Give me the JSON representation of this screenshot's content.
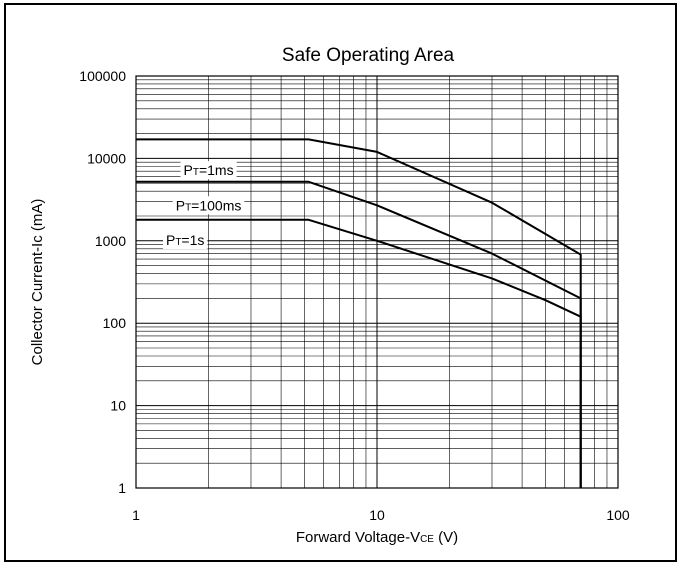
{
  "chart_data": {
    "type": "line",
    "title": "Safe Operating Area",
    "xlabel": "Forward Voltage-VCE (V)",
    "ylabel": "Collector Current-Ic (mA)",
    "x_scale": "log",
    "y_scale": "log",
    "xlim": [
      1,
      100
    ],
    "ylim": [
      1,
      100000
    ],
    "x_ticks": [
      "1",
      "10",
      "100"
    ],
    "y_ticks": [
      "1",
      "10",
      "100",
      "1000",
      "10000",
      "100000"
    ],
    "grid": true,
    "series": [
      {
        "name": "PT=1ms",
        "x": [
          1,
          5.2,
          10,
          30,
          70,
          70
        ],
        "y": [
          17000,
          17000,
          12000,
          2900,
          680,
          1
        ]
      },
      {
        "name": "PT=100ms",
        "x": [
          1,
          5.2,
          10,
          30,
          70,
          70
        ],
        "y": [
          5200,
          5200,
          2700,
          700,
          200,
          1
        ]
      },
      {
        "name": "PT=1s",
        "x": [
          1,
          5.2,
          10,
          30,
          50,
          70,
          70
        ],
        "y": [
          1800,
          1800,
          1000,
          350,
          190,
          120,
          1
        ]
      }
    ],
    "annotations": [
      {
        "main": "P",
        "sub": "T",
        "rest": "=1ms"
      },
      {
        "main": "P",
        "sub": "T",
        "rest": "=100ms"
      },
      {
        "main": "P",
        "sub": "T",
        "rest": "=1s"
      }
    ],
    "xlabel_parts": {
      "pre": "Forward Voltage-V",
      "sub": "CE",
      "post": " (V)"
    }
  }
}
